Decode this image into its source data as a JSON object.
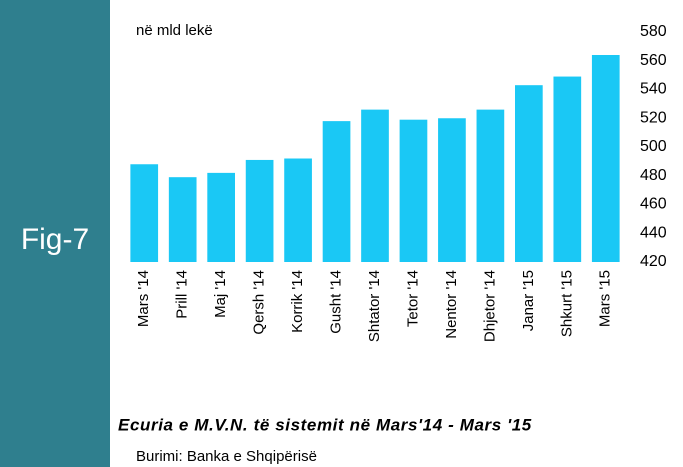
{
  "figure_label": "Fig-7",
  "chart_data": {
    "type": "bar",
    "y_axis_label": "në mld lekë",
    "title": "Ecuria e M.V.N. të sistemit në Mars'14 - Mars '15",
    "source": "Burimi: Banka e Shqipërisë",
    "categories": [
      "Mars '14",
      "Prill '14",
      "Maj '14",
      "Qersh '14",
      "Korrik '14",
      "Gusht '14",
      "Shtator '14",
      "Tetor '14",
      "Nentor '14",
      "Dhjetor '14",
      "Janar '15",
      "Shkurt '15",
      "Mars '15"
    ],
    "values": [
      488,
      479,
      482,
      491,
      492,
      518,
      526,
      519,
      520,
      526,
      543,
      549,
      564
    ],
    "color": "#1ac8f5",
    "ylim": [
      420,
      580
    ],
    "yticks": [
      420,
      440,
      460,
      480,
      500,
      520,
      540,
      560,
      580
    ],
    "grid": false
  }
}
